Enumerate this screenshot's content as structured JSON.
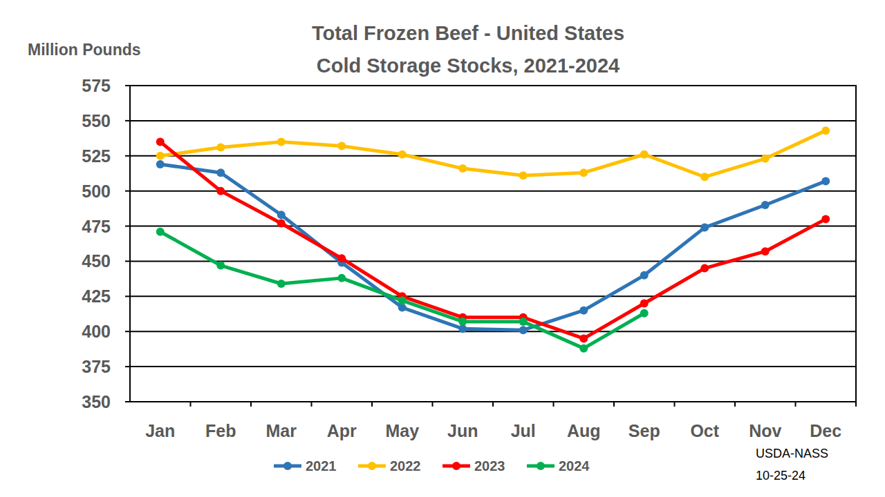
{
  "chart_data": {
    "type": "line",
    "title": "Total Frozen Beef - United States",
    "subtitle": "Cold Storage Stocks, 2021-2024",
    "y_label": "Million Pounds",
    "annotations": [
      "USDA-NASS",
      "10-25-24"
    ],
    "categories": [
      "Jan",
      "Feb",
      "Mar",
      "Apr",
      "May",
      "Jun",
      "Jul",
      "Aug",
      "Sep",
      "Oct",
      "Nov",
      "Dec"
    ],
    "series": [
      {
        "name": "2021",
        "color": "#2E75B6",
        "marker": "circle",
        "values": [
          519,
          513,
          483,
          449,
          417,
          402,
          401,
          415,
          440,
          474,
          490,
          507
        ]
      },
      {
        "name": "2022",
        "color": "#FFC000",
        "marker": "circle",
        "values": [
          525,
          531,
          535,
          532,
          526,
          516,
          511,
          513,
          526,
          510,
          523,
          543
        ]
      },
      {
        "name": "2023",
        "color": "#FF0000",
        "marker": "circle",
        "values": [
          535,
          500,
          477,
          452,
          425,
          410,
          410,
          395,
          420,
          445,
          457,
          480
        ]
      },
      {
        "name": "2024",
        "color": "#00B050",
        "marker": "circle",
        "values": [
          471,
          447,
          434,
          438,
          422,
          407,
          407,
          388,
          413,
          null,
          null,
          null
        ]
      }
    ],
    "ylim": [
      350,
      575
    ],
    "yticks": [
      350,
      375,
      400,
      425,
      450,
      475,
      500,
      525,
      550,
      575
    ],
    "grid": true,
    "legend": "bottom"
  }
}
